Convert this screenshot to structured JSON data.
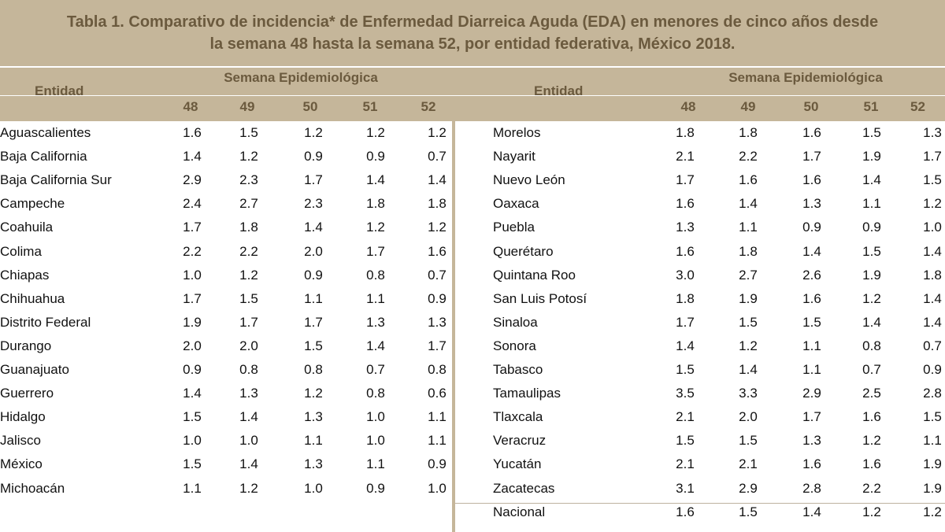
{
  "title": {
    "line1": "Tabla 1. Comparativo de incidencia* de Enfermedad Diarreica Aguda (EDA) en menores de cinco años desde",
    "line2": "la semana 48 hasta la semana 52,  por entidad federativa, México 2018."
  },
  "headers": {
    "entidad": "Entidad",
    "semana": "Semana Epidemiológica",
    "weeks": [
      "48",
      "49",
      "50",
      "51",
      "52"
    ]
  },
  "left_rows": [
    {
      "name": "Aguascalientes",
      "values": [
        "1.6",
        "1.5",
        "1.2",
        "1.2",
        "1.2"
      ]
    },
    {
      "name": "Baja California",
      "values": [
        "1.4",
        "1.2",
        "0.9",
        "0.9",
        "0.7"
      ]
    },
    {
      "name": "Baja California Sur",
      "values": [
        "2.9",
        "2.3",
        "1.7",
        "1.4",
        "1.4"
      ]
    },
    {
      "name": "Campeche",
      "values": [
        "2.4",
        "2.7",
        "2.3",
        "1.8",
        "1.8"
      ]
    },
    {
      "name": "Coahuila",
      "values": [
        "1.7",
        "1.8",
        "1.4",
        "1.2",
        "1.2"
      ]
    },
    {
      "name": "Colima",
      "values": [
        "2.2",
        "2.2",
        "2.0",
        "1.7",
        "1.6"
      ]
    },
    {
      "name": "Chiapas",
      "values": [
        "1.0",
        "1.2",
        "0.9",
        "0.8",
        "0.7"
      ]
    },
    {
      "name": "Chihuahua",
      "values": [
        "1.7",
        "1.5",
        "1.1",
        "1.1",
        "0.9"
      ]
    },
    {
      "name": "Distrito Federal",
      "values": [
        "1.9",
        "1.7",
        "1.7",
        "1.3",
        "1.3"
      ]
    },
    {
      "name": "Durango",
      "values": [
        "2.0",
        "2.0",
        "1.5",
        "1.4",
        "1.7"
      ]
    },
    {
      "name": "Guanajuato",
      "values": [
        "0.9",
        "0.8",
        "0.8",
        "0.7",
        "0.8"
      ]
    },
    {
      "name": "Guerrero",
      "values": [
        "1.4",
        "1.3",
        "1.2",
        "0.8",
        "0.6"
      ]
    },
    {
      "name": "Hidalgo",
      "values": [
        "1.5",
        "1.4",
        "1.3",
        "1.0",
        "1.1"
      ]
    },
    {
      "name": "Jalisco",
      "values": [
        "1.0",
        "1.0",
        "1.1",
        "1.0",
        "1.1"
      ]
    },
    {
      "name": "México",
      "values": [
        "1.5",
        "1.4",
        "1.3",
        "1.1",
        "0.9"
      ]
    },
    {
      "name": "Michoacán",
      "values": [
        "1.1",
        "1.2",
        "1.0",
        "0.9",
        "1.0"
      ]
    }
  ],
  "right_rows": [
    {
      "name": "Morelos",
      "values": [
        "1.8",
        "1.8",
        "1.6",
        "1.5",
        "1.3"
      ]
    },
    {
      "name": "Nayarit",
      "values": [
        "2.1",
        "2.2",
        "1.7",
        "1.9",
        "1.7"
      ]
    },
    {
      "name": "Nuevo León",
      "values": [
        "1.7",
        "1.6",
        "1.6",
        "1.4",
        "1.5"
      ]
    },
    {
      "name": "Oaxaca",
      "values": [
        "1.6",
        "1.4",
        "1.3",
        "1.1",
        "1.2"
      ]
    },
    {
      "name": "Puebla",
      "values": [
        "1.3",
        "1.1",
        "0.9",
        "0.9",
        "1.0"
      ]
    },
    {
      "name": "Querétaro",
      "values": [
        "1.6",
        "1.8",
        "1.4",
        "1.5",
        "1.4"
      ]
    },
    {
      "name": "Quintana Roo",
      "values": [
        "3.0",
        "2.7",
        "2.6",
        "1.9",
        "1.8"
      ]
    },
    {
      "name": "San Luis Potosí",
      "values": [
        "1.8",
        "1.9",
        "1.6",
        "1.2",
        "1.4"
      ]
    },
    {
      "name": "Sinaloa",
      "values": [
        "1.7",
        "1.5",
        "1.5",
        "1.4",
        "1.4"
      ]
    },
    {
      "name": "Sonora",
      "values": [
        "1.4",
        "1.2",
        "1.1",
        "0.8",
        "0.7"
      ]
    },
    {
      "name": "Tabasco",
      "values": [
        "1.5",
        "1.4",
        "1.1",
        "0.7",
        "0.9"
      ]
    },
    {
      "name": "Tamaulipas",
      "values": [
        "3.5",
        "3.3",
        "2.9",
        "2.5",
        "2.8"
      ]
    },
    {
      "name": "Tlaxcala",
      "values": [
        "2.1",
        "2.0",
        "1.7",
        "1.6",
        "1.5"
      ]
    },
    {
      "name": "Veracruz",
      "values": [
        "1.5",
        "1.5",
        "1.3",
        "1.2",
        "1.1"
      ]
    },
    {
      "name": "Yucatán",
      "values": [
        "2.1",
        "2.1",
        "1.6",
        "1.6",
        "1.9"
      ]
    },
    {
      "name": "Zacatecas",
      "values": [
        "3.1",
        "2.9",
        "2.8",
        "2.2",
        "1.9"
      ]
    },
    {
      "name": "Nacional",
      "values": [
        "1.6",
        "1.5",
        "1.4",
        "1.2",
        "1.2"
      ]
    }
  ]
}
